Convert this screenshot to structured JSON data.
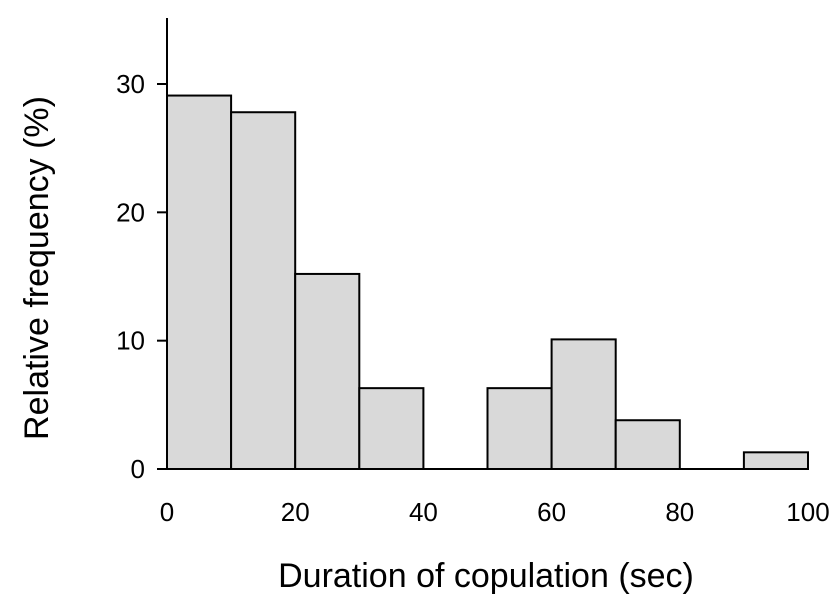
{
  "chart_data": {
    "type": "bar",
    "histogram": true,
    "bins": [
      {
        "start": 0,
        "end": 10,
        "value": 29.1
      },
      {
        "start": 10,
        "end": 20,
        "value": 27.8
      },
      {
        "start": 20,
        "end": 30,
        "value": 15.2
      },
      {
        "start": 30,
        "end": 40,
        "value": 6.3
      },
      {
        "start": 40,
        "end": 50,
        "value": 0
      },
      {
        "start": 50,
        "end": 60,
        "value": 6.3
      },
      {
        "start": 60,
        "end": 70,
        "value": 10.1
      },
      {
        "start": 70,
        "end": 80,
        "value": 3.8
      },
      {
        "start": 80,
        "end": 90,
        "value": 0
      },
      {
        "start": 90,
        "end": 100,
        "value": 1.3
      }
    ],
    "title": "",
    "xlabel": "Duration of copulation (sec)",
    "ylabel": "Relative frequency (%)",
    "xlim": [
      0,
      100
    ],
    "ylim": [
      0,
      35
    ],
    "xticks": [
      0,
      20,
      40,
      60,
      80,
      100
    ],
    "yticks": [
      0,
      10,
      20,
      30
    ],
    "bar_fill": "#d9d9d9",
    "bar_stroke": "#000000",
    "grid": false
  }
}
